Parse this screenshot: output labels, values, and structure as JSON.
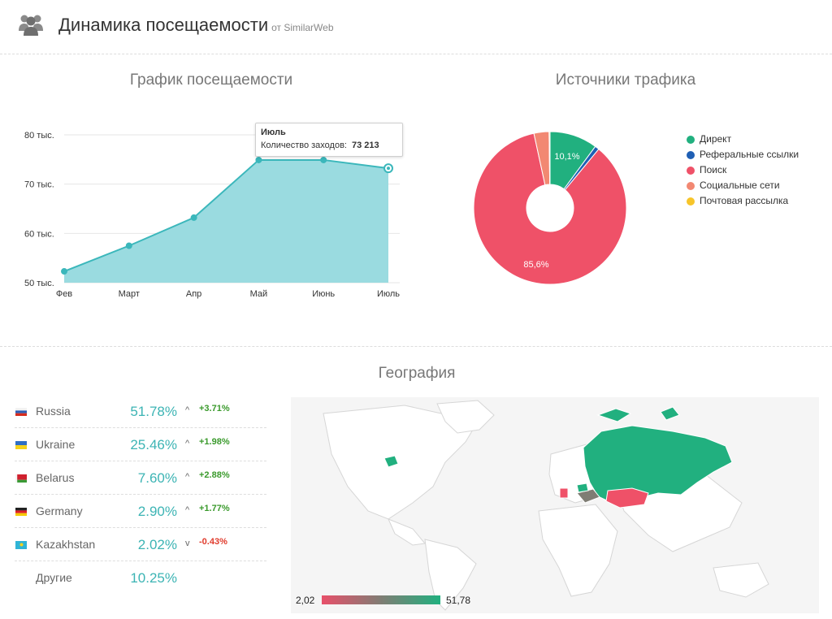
{
  "header": {
    "icon": "users-icon",
    "title": "Динамика посещаемости",
    "subtitle": "от SimilarWeb"
  },
  "traffic_chart": {
    "title": "График посещаемости",
    "tooltip": {
      "month": "Июль",
      "label": "Количество заходов:",
      "value": "73 213"
    }
  },
  "sources": {
    "title": "Источники трафика",
    "labels": [
      "10,1%",
      "85,6%"
    ],
    "legend": [
      "Директ",
      "Реферальные ссылки",
      "Поиск",
      "Социальные сети",
      "Почтовая рассылка"
    ]
  },
  "geo": {
    "title": "География",
    "rows": [
      {
        "country": "Russia",
        "pct": "51.78%",
        "arrow": "^",
        "change": "+3.71%",
        "dir": "up"
      },
      {
        "country": "Ukraine",
        "pct": "25.46%",
        "arrow": "^",
        "change": "+1.98%",
        "dir": "up"
      },
      {
        "country": "Belarus",
        "pct": "7.60%",
        "arrow": "^",
        "change": "+2.88%",
        "dir": "up"
      },
      {
        "country": "Germany",
        "pct": "2.90%",
        "arrow": "^",
        "change": "+1.77%",
        "dir": "up"
      },
      {
        "country": "Kazakhstan",
        "pct": "2.02%",
        "arrow": "v",
        "change": "-0.43%",
        "dir": "down"
      }
    ],
    "other": {
      "label": "Другие",
      "pct": "10.25%"
    },
    "scale_min": "2,02",
    "scale_max": "51,78"
  },
  "chart_data": [
    {
      "type": "area",
      "title": "График посещаемости",
      "categories": [
        "Фев",
        "Март",
        "Апр",
        "Май",
        "Июнь",
        "Июль"
      ],
      "values": [
        52300,
        57500,
        63200,
        74900,
        74900,
        73213
      ],
      "ylim": [
        50000,
        80000
      ],
      "yticks": [
        50000,
        60000,
        70000,
        80000
      ],
      "ytick_labels": [
        "50 тыс.",
        "60 тыс.",
        "70 тыс.",
        "80 тыс."
      ],
      "grid": true,
      "color": "#3bb7bb",
      "fill": "#9adbe0"
    },
    {
      "type": "pie",
      "title": "Источники трафика",
      "labels": [
        "Директ",
        "Реферальные ссылки",
        "Поиск",
        "Социальные сети",
        "Почтовая рассылка"
      ],
      "values": [
        10.1,
        0.9,
        85.6,
        3.2,
        0.2
      ],
      "colors": [
        "#21b07f",
        "#1f5fb4",
        "#ef5168",
        "#f28872",
        "#f7c52a"
      ],
      "donut": true,
      "legend": "right"
    }
  ]
}
